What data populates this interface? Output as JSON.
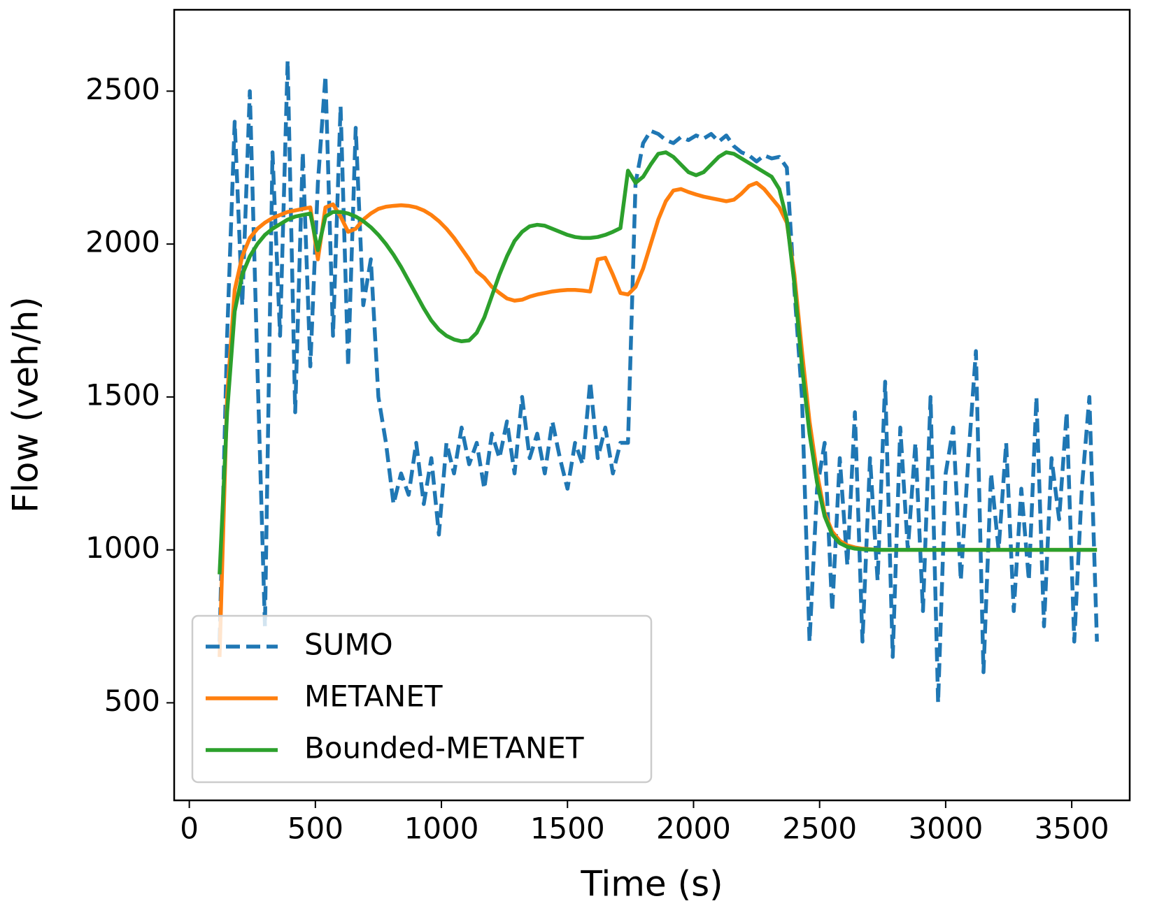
{
  "chart_data": {
    "type": "line",
    "xlabel": "Time (s)",
    "ylabel": "Flow (veh/h)",
    "xlim": [
      -60,
      3730
    ],
    "ylim": [
      181,
      2766
    ],
    "xticks": [
      0,
      500,
      1000,
      1500,
      2000,
      2500,
      3000,
      3500
    ],
    "yticks": [
      500,
      1000,
      1500,
      2000,
      2500
    ],
    "legend": "lower left",
    "x": [
      120,
      150,
      180,
      210,
      240,
      270,
      300,
      330,
      360,
      390,
      420,
      450,
      480,
      510,
      540,
      570,
      600,
      630,
      660,
      690,
      720,
      750,
      780,
      810,
      840,
      870,
      900,
      930,
      960,
      990,
      1020,
      1050,
      1080,
      1110,
      1140,
      1170,
      1200,
      1230,
      1260,
      1290,
      1320,
      1350,
      1380,
      1410,
      1440,
      1470,
      1500,
      1530,
      1560,
      1590,
      1620,
      1650,
      1680,
      1710,
      1740,
      1770,
      1800,
      1830,
      1860,
      1890,
      1920,
      1950,
      1980,
      2010,
      2040,
      2070,
      2100,
      2130,
      2160,
      2190,
      2220,
      2250,
      2280,
      2310,
      2340,
      2370,
      2400,
      2430,
      2460,
      2490,
      2520,
      2550,
      2580,
      2610,
      2640,
      2670,
      2700,
      2730,
      2760,
      2790,
      2820,
      2850,
      2880,
      2910,
      2940,
      2970,
      3000,
      3030,
      3060,
      3090,
      3120,
      3150,
      3180,
      3210,
      3240,
      3270,
      3300,
      3330,
      3360,
      3390,
      3420,
      3450,
      3480,
      3510,
      3540,
      3570,
      3600
    ],
    "series": [
      {
        "name": "SUMO",
        "color": "#1f77b4",
        "dashed": true,
        "values": [
          700,
          1700,
          2400,
          1800,
          2500,
          1600,
          750,
          2300,
          1700,
          2600,
          1450,
          2300,
          1600,
          2200,
          2550,
          1700,
          2450,
          1600,
          2380,
          1800,
          1950,
          1500,
          1350,
          1150,
          1250,
          1180,
          1350,
          1150,
          1300,
          1050,
          1350,
          1250,
          1400,
          1280,
          1350,
          1200,
          1380,
          1300,
          1420,
          1250,
          1500,
          1300,
          1380,
          1250,
          1420,
          1300,
          1200,
          1350,
          1280,
          1550,
          1300,
          1400,
          1250,
          1350,
          1350,
          2200,
          2330,
          2370,
          2360,
          2340,
          2330,
          2350,
          2340,
          2355,
          2345,
          2360,
          2335,
          2355,
          2320,
          2300,
          2290,
          2270,
          2290,
          2280,
          2285,
          2250,
          1850,
          1500,
          700,
          1200,
          1350,
          800,
          1300,
          950,
          1450,
          700,
          1300,
          900,
          1550,
          650,
          1400,
          1000,
          1350,
          800,
          1500,
          500,
          1250,
          1400,
          900,
          1300,
          1650,
          600,
          1250,
          1000,
          1350,
          800,
          1200,
          900,
          1500,
          750,
          1300,
          1100,
          1450,
          700,
          1200,
          1500,
          700
        ]
      },
      {
        "name": "METANET",
        "color": "#ff7f0e",
        "dashed": false,
        "values": [
          650,
          1500,
          1850,
          1960,
          2020,
          2050,
          2070,
          2085,
          2095,
          2105,
          2110,
          2115,
          2120,
          1950,
          2120,
          2130,
          2090,
          2040,
          2050,
          2080,
          2100,
          2115,
          2122,
          2125,
          2127,
          2125,
          2120,
          2110,
          2095,
          2075,
          2050,
          2020,
          1985,
          1950,
          1910,
          1890,
          1860,
          1840,
          1822,
          1815,
          1818,
          1828,
          1835,
          1840,
          1845,
          1848,
          1850,
          1850,
          1848,
          1845,
          1950,
          1955,
          1900,
          1840,
          1835,
          1860,
          1920,
          2000,
          2080,
          2140,
          2175,
          2180,
          2170,
          2162,
          2155,
          2150,
          2145,
          2140,
          2145,
          2165,
          2190,
          2200,
          2180,
          2150,
          2120,
          2070,
          1900,
          1650,
          1420,
          1250,
          1120,
          1060,
          1030,
          1015,
          1008,
          1004,
          1002,
          1000,
          1000,
          1000,
          1000,
          1000,
          1000,
          1000,
          1000,
          1000,
          1000,
          1000,
          1000,
          1000,
          1000,
          1000,
          1000,
          1000,
          1000,
          1000,
          1000,
          1000,
          1000,
          1000,
          1000,
          1000,
          1000,
          1000,
          1000,
          1000,
          1000
        ]
      },
      {
        "name": "Bounded-METANET",
        "color": "#2ca02c",
        "dashed": false,
        "values": [
          920,
          1450,
          1780,
          1900,
          1960,
          2000,
          2030,
          2050,
          2065,
          2080,
          2090,
          2095,
          2100,
          1980,
          2090,
          2105,
          2105,
          2100,
          2090,
          2075,
          2055,
          2030,
          2000,
          1965,
          1925,
          1880,
          1835,
          1790,
          1750,
          1720,
          1700,
          1688,
          1682,
          1685,
          1710,
          1760,
          1830,
          1900,
          1960,
          2010,
          2040,
          2058,
          2063,
          2060,
          2050,
          2040,
          2030,
          2023,
          2020,
          2020,
          2023,
          2030,
          2040,
          2052,
          2240,
          2200,
          2220,
          2260,
          2295,
          2300,
          2285,
          2260,
          2235,
          2225,
          2235,
          2260,
          2285,
          2300,
          2295,
          2280,
          2265,
          2250,
          2235,
          2220,
          2180,
          2080,
          1870,
          1600,
          1380,
          1220,
          1110,
          1050,
          1022,
          1010,
          1004,
          1002,
          1001,
          1000,
          1000,
          1000,
          1000,
          1000,
          1000,
          1000,
          1000,
          1000,
          1000,
          1000,
          1000,
          1000,
          1000,
          1000,
          1000,
          1000,
          1000,
          1000,
          1000,
          1000,
          1000,
          1000,
          1000,
          1000,
          1000,
          1000,
          1000,
          1000,
          1000
        ]
      }
    ]
  }
}
